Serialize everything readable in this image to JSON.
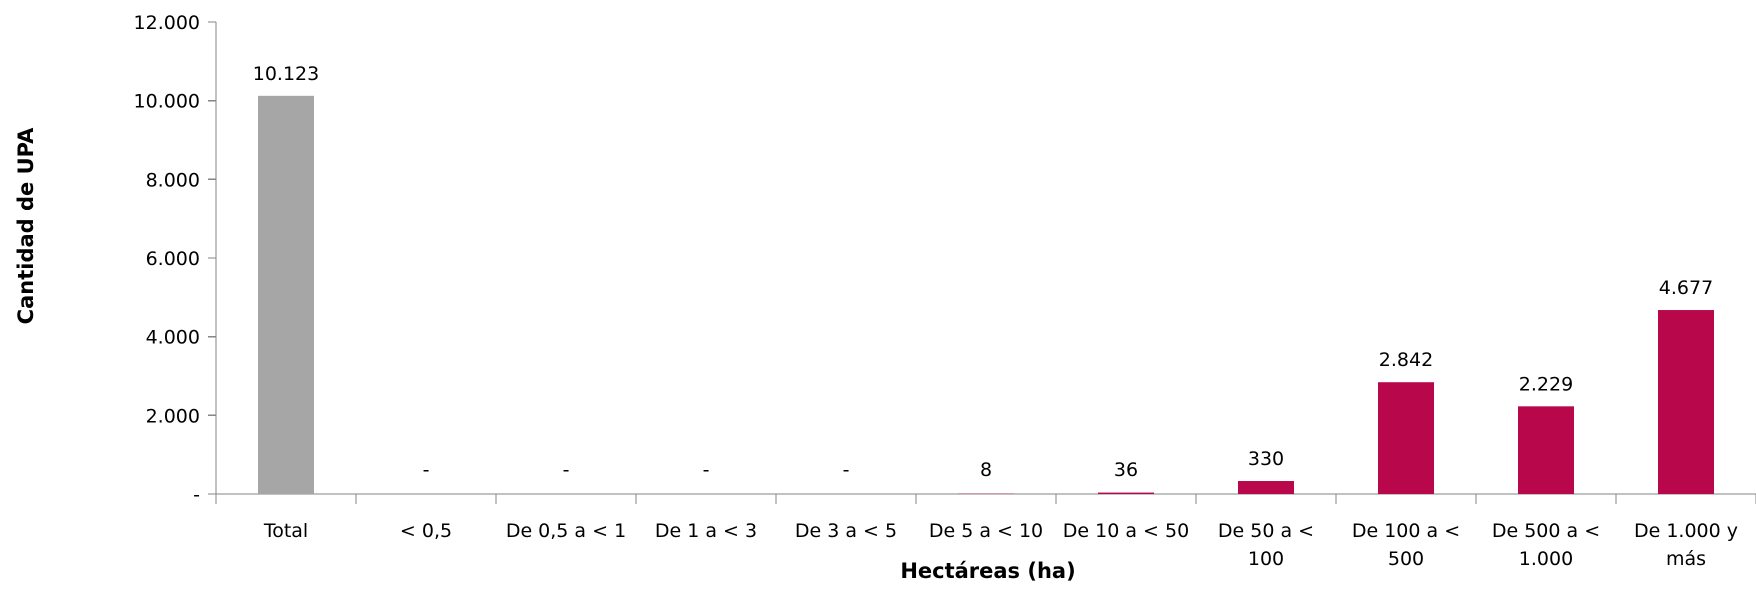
{
  "chart_data": {
    "type": "bar",
    "xlabel": "Hectáreas (ha)",
    "ylabel": "Cantidad de UPA",
    "ylim": [
      0,
      12000
    ],
    "yticks": [
      {
        "value": 0,
        "label": "-"
      },
      {
        "value": 2000,
        "label": "2.000"
      },
      {
        "value": 4000,
        "label": "4.000"
      },
      {
        "value": 6000,
        "label": "6.000"
      },
      {
        "value": 8000,
        "label": "8.000"
      },
      {
        "value": 10000,
        "label": "10.000"
      },
      {
        "value": 12000,
        "label": "12.000"
      }
    ],
    "categories": [
      [
        "Total"
      ],
      [
        "< 0,5"
      ],
      [
        "De 0,5 a < 1"
      ],
      [
        "De 1 a < 3"
      ],
      [
        "De 3 a < 5"
      ],
      [
        "De 5 a < 10"
      ],
      [
        "De 10 a < 50"
      ],
      [
        "De 50 a <",
        "100"
      ],
      [
        "De 100 a <",
        "500"
      ],
      [
        "De 500 a <",
        "1.000"
      ],
      [
        "De 1.000 y",
        "más"
      ]
    ],
    "values": [
      10123,
      0,
      0,
      0,
      0,
      8,
      36,
      330,
      2842,
      2229,
      4677
    ],
    "value_labels": [
      "10.123",
      "-",
      "-",
      "-",
      "-",
      "8",
      "36",
      "330",
      "2.842",
      "2.229",
      "4.677"
    ],
    "colors": {
      "total": "#a6a6a6",
      "bars": "#b8084b",
      "axis": "#868686"
    }
  }
}
